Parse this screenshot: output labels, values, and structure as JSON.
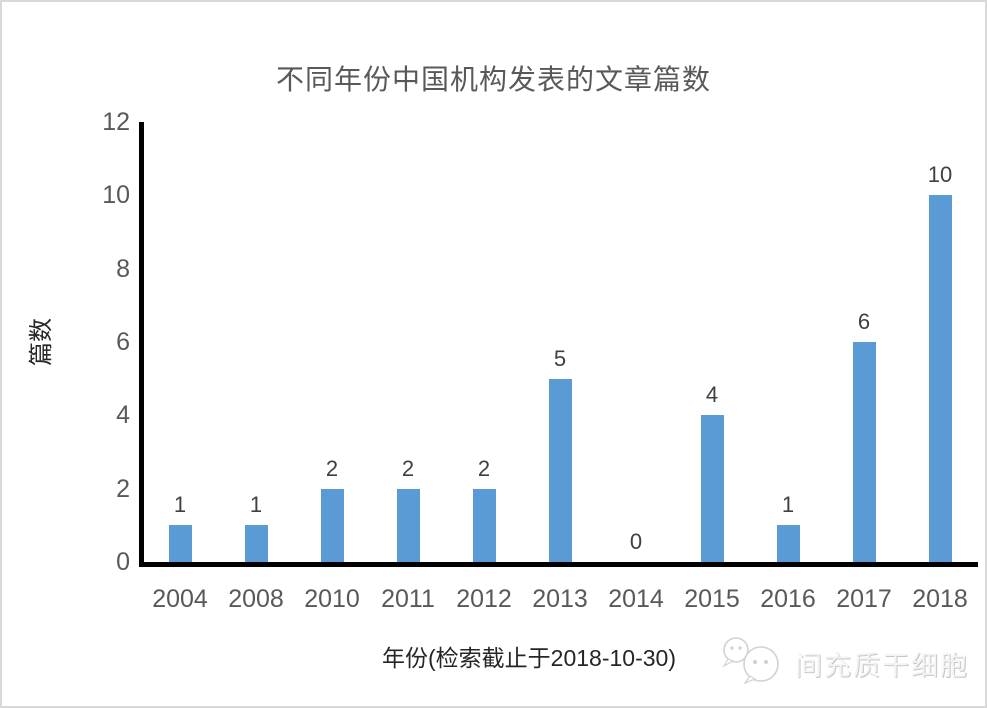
{
  "page": {
    "background": "#ffffff",
    "border_color": "#d9d9d9"
  },
  "chart_data": {
    "type": "bar",
    "title": "不同年份中国机构发表的文章篇数",
    "categories": [
      "2004",
      "2008",
      "2010",
      "2011",
      "2012",
      "2013",
      "2014",
      "2015",
      "2016",
      "2017",
      "2018"
    ],
    "values": [
      1,
      1,
      2,
      2,
      2,
      5,
      0,
      4,
      1,
      6,
      10
    ],
    "xlabel": "年份(检索截止于2018-10-30)",
    "ylabel": "篇数",
    "ylim": [
      0,
      12
    ],
    "yticks": [
      0,
      2,
      4,
      6,
      8,
      10,
      12
    ],
    "grid": false,
    "legend": "none",
    "data_labels": true,
    "bar_color": "#5B9BD5",
    "axis_color": "#000000",
    "title_color": "#595959",
    "tick_color": "#595959",
    "data_label_color": "#404040"
  },
  "watermark": {
    "text": "间充质干细胞",
    "logo": "chat-bubbles-icon"
  }
}
